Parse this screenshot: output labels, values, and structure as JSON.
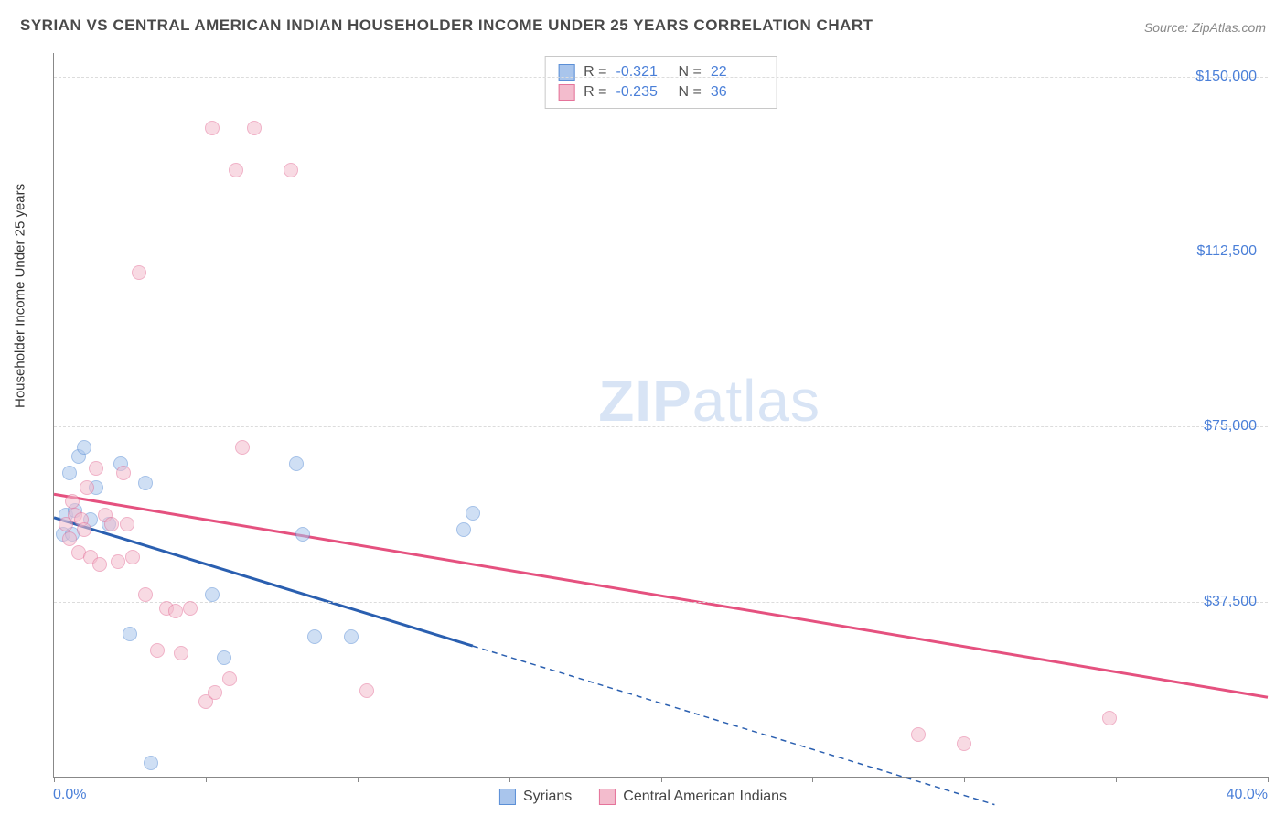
{
  "title": "SYRIAN VS CENTRAL AMERICAN INDIAN HOUSEHOLDER INCOME UNDER 25 YEARS CORRELATION CHART",
  "source": "Source: ZipAtlas.com",
  "watermark_bold": "ZIP",
  "watermark_rest": "atlas",
  "y_axis_label": "Householder Income Under 25 years",
  "chart": {
    "type": "scatter",
    "x_min": 0.0,
    "x_max": 40.0,
    "y_min": 0,
    "y_max": 155000,
    "x_tick_positions": [
      0,
      5,
      10,
      15,
      20,
      25,
      30,
      35,
      40
    ],
    "x_tick_labels_shown": {
      "0": "0.0%",
      "40": "40.0%"
    },
    "y_gridlines": [
      37500,
      75000,
      112500,
      150000
    ],
    "y_tick_labels": {
      "37500": "$37,500",
      "75000": "$75,000",
      "112500": "$112,500",
      "150000": "$150,000"
    },
    "background_color": "#ffffff",
    "grid_color": "#dcdcdc",
    "axis_color": "#888888",
    "tick_label_color": "#4a7fd8",
    "marker_radius": 8,
    "marker_opacity": 0.55,
    "series": [
      {
        "name": "Syrians",
        "fill_color": "#a9c5ec",
        "stroke_color": "#5b8fd6",
        "legend_label": "Syrians",
        "R": "-0.321",
        "N": "22",
        "data": [
          {
            "x": 0.3,
            "y": 52000
          },
          {
            "x": 0.4,
            "y": 56000
          },
          {
            "x": 0.5,
            "y": 65000
          },
          {
            "x": 0.6,
            "y": 52000
          },
          {
            "x": 0.7,
            "y": 57000
          },
          {
            "x": 0.8,
            "y": 68500
          },
          {
            "x": 1.0,
            "y": 70500
          },
          {
            "x": 1.2,
            "y": 55000
          },
          {
            "x": 1.4,
            "y": 62000
          },
          {
            "x": 1.8,
            "y": 54000
          },
          {
            "x": 2.2,
            "y": 67000
          },
          {
            "x": 2.5,
            "y": 30500
          },
          {
            "x": 3.0,
            "y": 63000
          },
          {
            "x": 3.2,
            "y": 3000
          },
          {
            "x": 5.2,
            "y": 39000
          },
          {
            "x": 5.6,
            "y": 25500
          },
          {
            "x": 8.0,
            "y": 67000
          },
          {
            "x": 8.2,
            "y": 52000
          },
          {
            "x": 8.6,
            "y": 30000
          },
          {
            "x": 9.8,
            "y": 30000
          },
          {
            "x": 13.5,
            "y": 53000
          },
          {
            "x": 13.8,
            "y": 56500
          }
        ],
        "trend": {
          "x1": 0,
          "y1": 55500,
          "x2": 13.8,
          "y2": 28000,
          "extend_x2": 31,
          "extend_y2": -6000,
          "color": "#2a5fb0",
          "width": 3
        }
      },
      {
        "name": "Central American Indians",
        "fill_color": "#f3bccd",
        "stroke_color": "#e5739a",
        "legend_label": "Central American Indians",
        "R": "-0.235",
        "N": "36",
        "data": [
          {
            "x": 0.4,
            "y": 54000
          },
          {
            "x": 0.5,
            "y": 51000
          },
          {
            "x": 0.6,
            "y": 59000
          },
          {
            "x": 0.7,
            "y": 56000
          },
          {
            "x": 0.8,
            "y": 48000
          },
          {
            "x": 0.9,
            "y": 55000
          },
          {
            "x": 1.0,
            "y": 53000
          },
          {
            "x": 1.1,
            "y": 62000
          },
          {
            "x": 1.2,
            "y": 47000
          },
          {
            "x": 1.4,
            "y": 66000
          },
          {
            "x": 1.5,
            "y": 45500
          },
          {
            "x": 1.7,
            "y": 56000
          },
          {
            "x": 1.9,
            "y": 54000
          },
          {
            "x": 2.1,
            "y": 46000
          },
          {
            "x": 2.3,
            "y": 65000
          },
          {
            "x": 2.4,
            "y": 54000
          },
          {
            "x": 2.6,
            "y": 47000
          },
          {
            "x": 2.8,
            "y": 108000
          },
          {
            "x": 3.0,
            "y": 39000
          },
          {
            "x": 3.4,
            "y": 27000
          },
          {
            "x": 3.7,
            "y": 36000
          },
          {
            "x": 4.0,
            "y": 35500
          },
          {
            "x": 4.2,
            "y": 26500
          },
          {
            "x": 4.5,
            "y": 36000
          },
          {
            "x": 5.0,
            "y": 16000
          },
          {
            "x": 5.2,
            "y": 139000
          },
          {
            "x": 5.3,
            "y": 18000
          },
          {
            "x": 5.8,
            "y": 21000
          },
          {
            "x": 6.0,
            "y": 130000
          },
          {
            "x": 6.2,
            "y": 70500
          },
          {
            "x": 6.6,
            "y": 139000
          },
          {
            "x": 7.8,
            "y": 130000
          },
          {
            "x": 10.3,
            "y": 18500
          },
          {
            "x": 28.5,
            "y": 9000
          },
          {
            "x": 30.0,
            "y": 7000
          },
          {
            "x": 34.8,
            "y": 12500
          }
        ],
        "trend": {
          "x1": 0,
          "y1": 60500,
          "x2": 40,
          "y2": 17000,
          "color": "#e5517f",
          "width": 3
        }
      }
    ]
  },
  "legend_top": {
    "r_label": "R =",
    "n_label": "N ="
  }
}
